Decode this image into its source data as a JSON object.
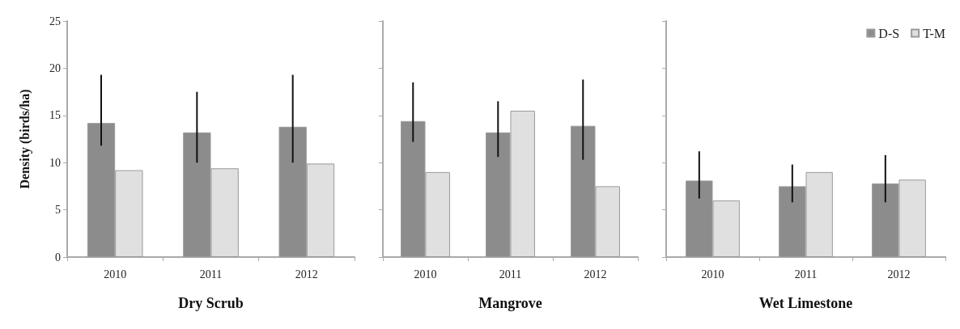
{
  "chart_data": [
    {
      "type": "bar",
      "xlabel": "Dry Scrub",
      "ylabel": "Density (birds/ha)",
      "categories": [
        "2010",
        "2011",
        "2012"
      ],
      "ylim": [
        0,
        25
      ],
      "yticks": [
        0,
        5,
        10,
        15,
        20,
        25
      ],
      "grid": false,
      "legend": false,
      "series": [
        {
          "color": "#8c8c8c",
          "values": [
            14.2,
            13.2,
            13.8
          ],
          "errors": [
            [
              11.8,
              19.3
            ],
            [
              10.0,
              17.5
            ],
            [
              10.0,
              19.3
            ]
          ]
        },
        {
          "color": "#e0e0e0",
          "values": [
            9.2,
            9.4,
            9.9
          ]
        }
      ]
    },
    {
      "type": "bar",
      "xlabel": "Mangrove",
      "categories": [
        "2010",
        "2011",
        "2012"
      ],
      "ylim": [
        0,
        25
      ],
      "yticks": [
        0,
        5,
        10,
        15,
        20,
        25
      ],
      "grid": false,
      "legend": false,
      "tick_labels": "x",
      "series": [
        {
          "color": "#8c8c8c",
          "values": [
            14.4,
            13.2,
            13.9
          ],
          "errors": [
            [
              12.2,
              18.5
            ],
            [
              10.6,
              16.5
            ],
            [
              10.3,
              18.8
            ]
          ]
        },
        {
          "color": "#e0e0e0",
          "values": [
            9.0,
            15.5,
            7.5
          ]
        }
      ]
    },
    {
      "type": "bar",
      "xlabel": "Wet Limestone",
      "categories": [
        "2010",
        "2011",
        "2012"
      ],
      "ylim": [
        0,
        25
      ],
      "yticks": [
        0,
        5,
        10,
        15,
        20,
        25
      ],
      "grid": false,
      "legend": "top right",
      "tick_labels": "x",
      "series": [
        {
          "name": "D-S",
          "color": "#8c8c8c",
          "values": [
            8.1,
            7.5,
            7.8
          ],
          "errors": [
            [
              6.2,
              11.2
            ],
            [
              5.8,
              9.8
            ],
            [
              5.8,
              10.8
            ]
          ]
        },
        {
          "name": "T-M",
          "color": "#e0e0e0",
          "values": [
            6.0,
            9.0,
            8.2
          ]
        }
      ]
    }
  ]
}
